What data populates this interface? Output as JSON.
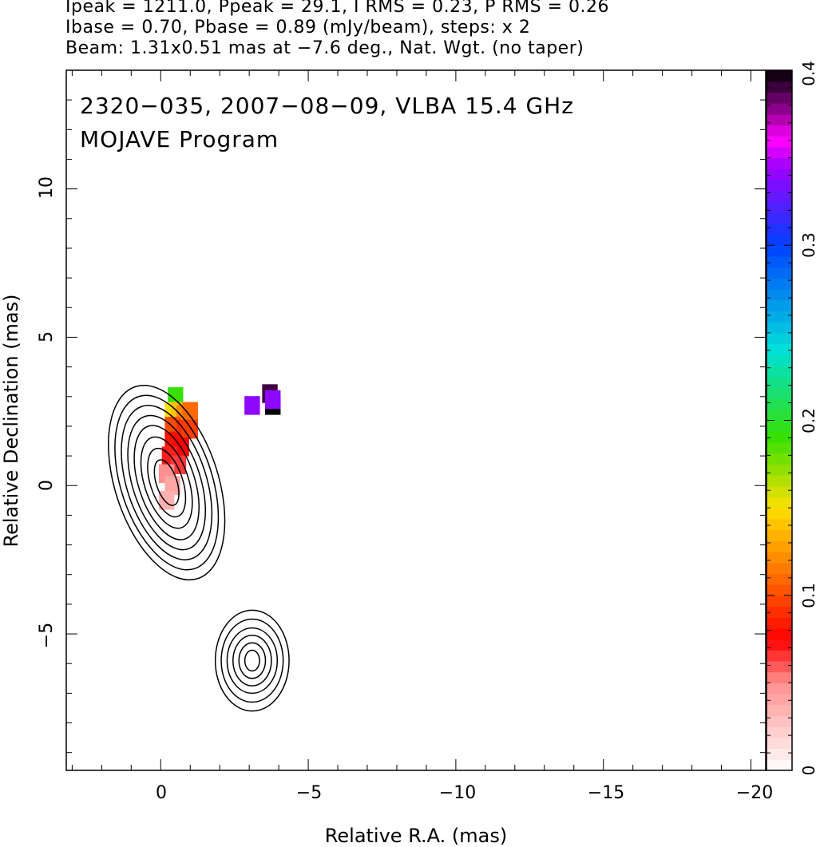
{
  "header": {
    "line1": "Ipeak = 1211.0, Ppeak = 29.1, I RMS = 0.23, P RMS = 0.26",
    "line2": "Ibase = 0.70, Pbase = 0.89 (mJy/beam), steps: x 2",
    "line3": "Beam: 1.31x0.51 mas at −7.6 deg., Nat. Wgt. (no taper)"
  },
  "chart_data": {
    "type": "heatmap",
    "title": "2320−035, 2007−08−09, VLBA 15.4 GHz",
    "subtitle": "MOJAVE Program",
    "xlabel": "Relative R.A. (mas)",
    "ylabel": "Relative Declination (mas)",
    "xlim": [
      3.2,
      -20.5
    ],
    "ylim": [
      -9.6,
      14.0
    ],
    "x_ticks": [
      0,
      -5,
      -10,
      -15,
      -20
    ],
    "x_tick_labels": [
      "0",
      "−5",
      "−10",
      "−15",
      "−20"
    ],
    "y_ticks": [
      -5,
      0,
      5,
      10
    ],
    "y_tick_labels": [
      "−5",
      "0",
      "5",
      "10"
    ],
    "colorbar": {
      "range": [
        0,
        0.4
      ],
      "ticks": [
        0,
        0.1,
        0.2,
        0.3,
        0.4
      ],
      "tick_labels": [
        "0",
        "0.1",
        "0.2",
        "0.3",
        "0.4"
      ],
      "stops": [
        {
          "v": 0.0,
          "color": "#ffffff"
        },
        {
          "v": 0.05,
          "color": "#ff9090"
        },
        {
          "v": 0.075,
          "color": "#ff0000"
        },
        {
          "v": 0.11,
          "color": "#ff6a00"
        },
        {
          "v": 0.15,
          "color": "#ffe000"
        },
        {
          "v": 0.19,
          "color": "#38e000"
        },
        {
          "v": 0.24,
          "color": "#00e0d8"
        },
        {
          "v": 0.3,
          "color": "#0040ff"
        },
        {
          "v": 0.345,
          "color": "#a000ff"
        },
        {
          "v": 0.36,
          "color": "#ff00ff"
        },
        {
          "v": 0.4,
          "color": "#000000"
        }
      ]
    },
    "core": {
      "x": 0.0,
      "y": 0.0
    },
    "contour_levels_mJy": [
      0.7,
      1.4,
      2.8,
      5.6,
      11.2,
      22.4,
      44.8,
      89.6,
      179.2,
      358.4,
      716.8
    ],
    "components": [
      {
        "name": "core",
        "x": -0.2,
        "y": 0.1
      },
      {
        "name": "southern knot",
        "x": -3.1,
        "y": -5.9
      }
    ],
    "fractional_polarization_pixels": [
      {
        "x": -0.5,
        "y": 3.0,
        "v": 0.19
      },
      {
        "x": -0.4,
        "y": 2.5,
        "v": 0.15
      },
      {
        "x": -0.6,
        "y": 2.5,
        "v": 0.14
      },
      {
        "x": -0.8,
        "y": 2.4,
        "v": 0.12
      },
      {
        "x": -1.0,
        "y": 2.5,
        "v": 0.11
      },
      {
        "x": -0.4,
        "y": 2.0,
        "v": 0.1
      },
      {
        "x": -0.8,
        "y": 1.9,
        "v": 0.09
      },
      {
        "x": -1.0,
        "y": 1.9,
        "v": 0.095
      },
      {
        "x": -0.4,
        "y": 1.5,
        "v": 0.08
      },
      {
        "x": -0.7,
        "y": 1.3,
        "v": 0.075
      },
      {
        "x": -0.3,
        "y": 1.0,
        "v": 0.07
      },
      {
        "x": -0.6,
        "y": 0.7,
        "v": 0.065
      },
      {
        "x": -0.2,
        "y": 0.4,
        "v": 0.05
      },
      {
        "x": -0.4,
        "y": 0.0,
        "v": 0.04
      },
      {
        "x": -0.2,
        "y": -0.5,
        "v": 0.035
      },
      {
        "x": -3.1,
        "y": 2.7,
        "v": 0.34
      },
      {
        "x": -3.7,
        "y": 3.1,
        "v": 0.39
      },
      {
        "x": -3.8,
        "y": 2.7,
        "v": 0.4
      },
      {
        "x": -3.8,
        "y": 2.9,
        "v": 0.34
      }
    ]
  }
}
